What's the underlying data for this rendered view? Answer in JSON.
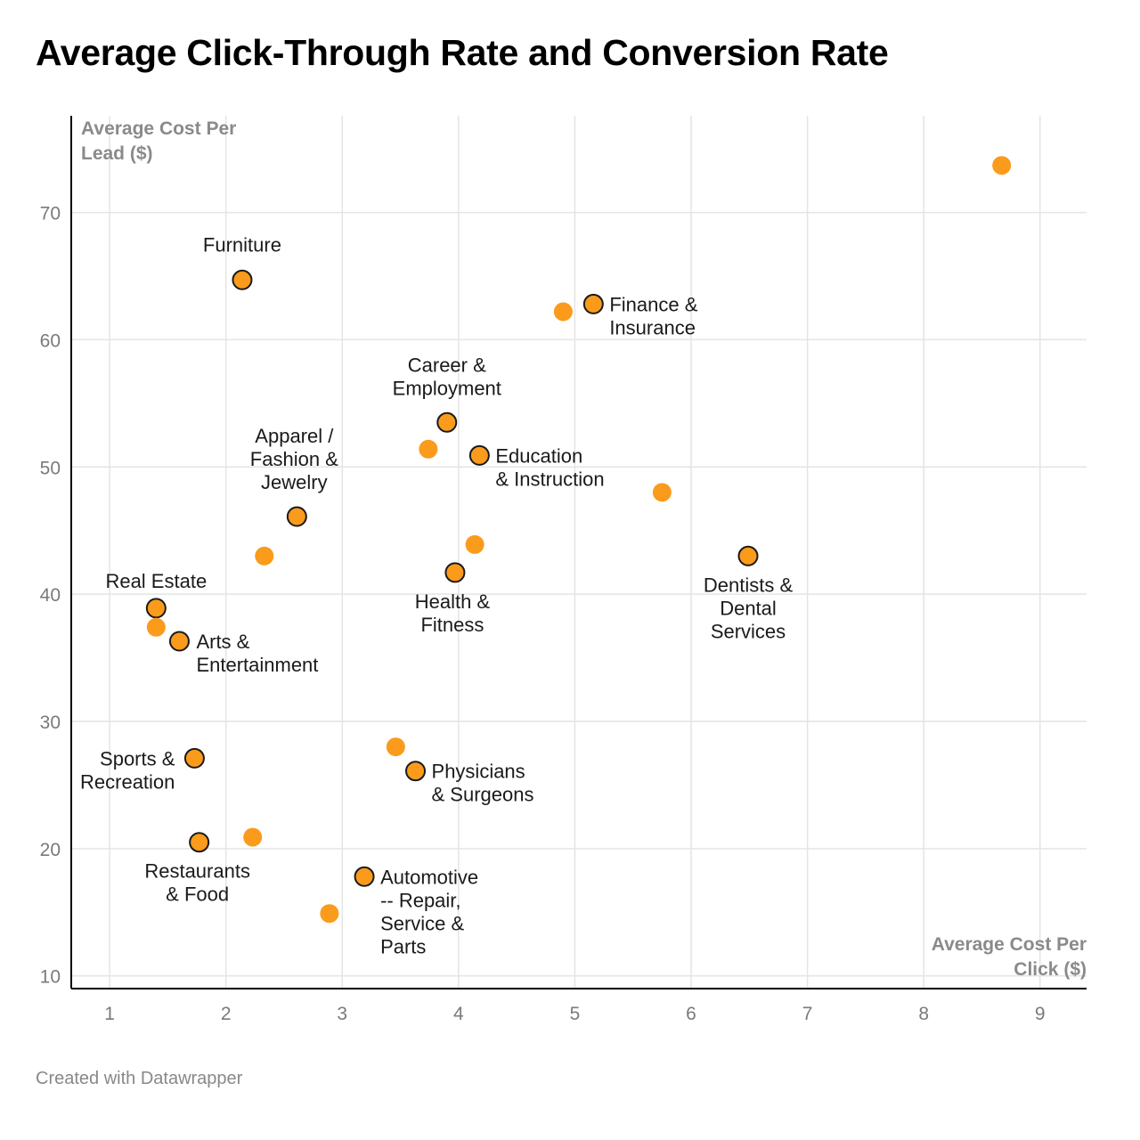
{
  "title": "Average Click-Through Rate and Conversion Rate",
  "footer": "Created with Datawrapper",
  "chart_data": {
    "type": "scatter",
    "xlabel": "Average Cost Per Click ($)",
    "ylabel": "Average Cost Per Lead ($)",
    "xlim": [
      0.67,
      9.4
    ],
    "ylim": [
      9.0,
      77.6
    ],
    "xticks": [
      1,
      2,
      3,
      4,
      5,
      6,
      7,
      8,
      9
    ],
    "yticks": [
      10,
      20,
      30,
      40,
      50,
      60,
      70
    ],
    "grid": true,
    "colors": {
      "point": "#fa9b1c",
      "outline": "#1a1a1a",
      "grid": "#e4e4e4",
      "axis": "#000000"
    },
    "points": [
      {
        "x": 2.14,
        "y": 64.7,
        "label": [
          "Furniture"
        ],
        "highlighted": true
      },
      {
        "x": 5.16,
        "y": 62.8,
        "label": [
          "Finance &",
          "Insurance"
        ],
        "highlighted": true
      },
      {
        "x": 4.9,
        "y": 62.2,
        "label": [],
        "highlighted": false
      },
      {
        "x": 3.9,
        "y": 53.5,
        "label": [
          "Career &",
          "Employment"
        ],
        "highlighted": true
      },
      {
        "x": 3.74,
        "y": 51.4,
        "label": [],
        "highlighted": false
      },
      {
        "x": 4.18,
        "y": 50.9,
        "label": [
          "Education",
          "& Instruction"
        ],
        "highlighted": true
      },
      {
        "x": 5.75,
        "y": 48.0,
        "label": [],
        "highlighted": false
      },
      {
        "x": 2.61,
        "y": 46.1,
        "label": [
          "Apparel /",
          "Fashion &",
          "Jewelry"
        ],
        "highlighted": true
      },
      {
        "x": 2.33,
        "y": 43.0,
        "label": [],
        "highlighted": false
      },
      {
        "x": 6.49,
        "y": 43.0,
        "label": [
          "Dentists &",
          "Dental",
          "Services"
        ],
        "highlighted": true
      },
      {
        "x": 4.14,
        "y": 43.9,
        "label": [],
        "highlighted": false
      },
      {
        "x": 3.97,
        "y": 41.7,
        "label": [
          "Health &",
          "Fitness"
        ],
        "highlighted": true
      },
      {
        "x": 1.4,
        "y": 38.9,
        "label": [
          "Real Estate"
        ],
        "highlighted": true
      },
      {
        "x": 1.4,
        "y": 37.4,
        "label": [],
        "highlighted": false
      },
      {
        "x": 1.6,
        "y": 36.3,
        "label": [
          "Arts &",
          "Entertainment"
        ],
        "highlighted": true
      },
      {
        "x": 8.67,
        "y": 73.7,
        "label": [],
        "highlighted": false
      },
      {
        "x": 1.73,
        "y": 27.1,
        "label": [
          "Sports &",
          "Recreation"
        ],
        "highlighted": true
      },
      {
        "x": 3.46,
        "y": 28.0,
        "label": [],
        "highlighted": false
      },
      {
        "x": 3.63,
        "y": 26.1,
        "label": [
          "Physicians",
          "& Surgeons"
        ],
        "highlighted": true
      },
      {
        "x": 1.77,
        "y": 20.5,
        "label": [
          "Restaurants",
          "& Food"
        ],
        "highlighted": true
      },
      {
        "x": 2.23,
        "y": 20.9,
        "label": [],
        "highlighted": false
      },
      {
        "x": 3.19,
        "y": 17.8,
        "label": [
          "Automotive",
          "-- Repair,",
          "Service &",
          "Parts"
        ],
        "highlighted": true
      },
      {
        "x": 2.89,
        "y": 14.9,
        "label": [],
        "highlighted": false
      }
    ]
  }
}
